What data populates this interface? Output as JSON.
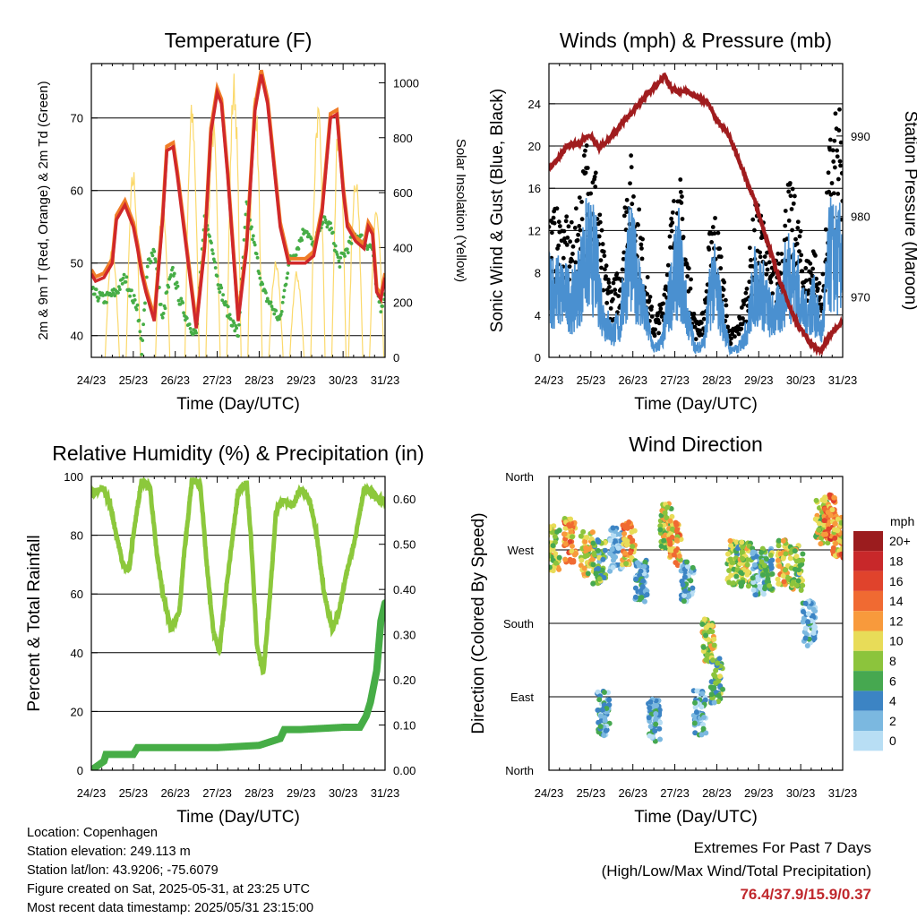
{
  "time_ticks": [
    "24/23",
    "25/23",
    "26/23",
    "27/23",
    "28/23",
    "29/23",
    "30/23",
    "31/23"
  ],
  "xlabel": "Time (Day/UTC)",
  "colors": {
    "temp_red": "#d0282a",
    "temp_orange": "#f07d28",
    "dewpoint_green": "#46ad46",
    "solar_yellow": "#fbd96b",
    "wind_blue": "#4a90d0",
    "gust_black": "#000000",
    "pressure_maroon": "#a01c1e",
    "rh_lightgreen": "#8cc83c",
    "precip_green": "#46ad46"
  },
  "chart_data": [
    {
      "name": "temperature",
      "type": "line",
      "title": "Temperature (F)",
      "ylabel": "2m & 9m T (Red, Orange) & 2m Td (Green)",
      "ylabel_right": "Solar Insolation (Yellow)",
      "ylim": [
        37,
        77.5
      ],
      "yticks": [
        40,
        50,
        60,
        70
      ],
      "ylim_right": [
        0,
        1070
      ],
      "yticks_right": [
        0,
        200,
        400,
        600,
        800,
        1000
      ],
      "xlim_days": [
        0,
        7
      ],
      "series": [
        {
          "color_key": "temp_red",
          "x": [
            0,
            0.1,
            0.3,
            0.5,
            0.6,
            0.8,
            1.0,
            1.1,
            1.2,
            1.3,
            1.5,
            1.7,
            1.8,
            1.95,
            2.05,
            2.2,
            2.5,
            2.7,
            2.85,
            3.0,
            3.1,
            3.25,
            3.5,
            3.7,
            3.9,
            4.05,
            4.2,
            4.5,
            4.7,
            4.9,
            5.1,
            5.3,
            5.5,
            5.7,
            5.85,
            6.0,
            6.1,
            6.3,
            6.5,
            6.6,
            6.7,
            6.8,
            6.9,
            7.0
          ],
          "y": [
            48.5,
            47.5,
            48,
            50,
            56,
            58,
            55,
            52,
            48.5,
            46,
            42,
            56,
            65.5,
            66,
            62,
            55,
            41,
            52,
            68,
            73.5,
            72,
            62,
            42,
            52,
            71,
            76,
            72,
            55,
            50,
            50,
            50,
            51,
            57,
            70,
            70.5,
            60,
            55,
            53,
            52,
            55,
            54,
            46,
            45,
            48
          ]
        },
        {
          "color_key": "dewpoint_green",
          "x": [
            0,
            0.3,
            0.6,
            0.8,
            1.0,
            1.1,
            1.2,
            1.35,
            1.5,
            1.7,
            1.8,
            1.95,
            2.1,
            2.3,
            2.5,
            2.7,
            2.9,
            3.0,
            3.2,
            3.5,
            3.7,
            3.9,
            4.1,
            4.3,
            4.5,
            4.7,
            4.9,
            5.1,
            5.3,
            5.5,
            5.7,
            5.9,
            6.1,
            6.3,
            6.5,
            6.7,
            6.8,
            6.9,
            7.0
          ],
          "y": [
            46,
            45,
            46,
            48,
            45,
            44,
            38,
            50,
            52,
            42,
            46,
            49,
            45,
            42,
            40,
            56,
            52,
            48,
            44,
            40,
            58,
            52,
            46,
            44,
            42,
            50,
            52,
            55,
            52,
            56,
            55,
            50,
            52,
            54,
            53,
            52,
            46,
            44,
            46
          ]
        },
        {
          "color_key": "solar_yellow",
          "axis": "right",
          "peaks_x": [
            0.5,
            1.0,
            1.7,
            2.4,
            2.9,
            3.4,
            3.9,
            4.4,
            4.9,
            5.4,
            5.9,
            6.3,
            6.8
          ],
          "peaks_y": [
            420,
            700,
            600,
            940,
            880,
            1050,
            1000,
            360,
            320,
            940,
            900,
            700,
            550
          ]
        }
      ]
    },
    {
      "name": "winds-pressure",
      "type": "line",
      "title": "Winds (mph) & Pressure (mb)",
      "ylabel": "Sonic Wind & Gust (Blue, Black)",
      "ylabel_right": "Station Pressure (Maroon)",
      "ylim": [
        0,
        27.8
      ],
      "yticks": [
        0,
        4,
        8,
        12,
        16,
        20,
        24
      ],
      "ylim_right": [
        962.5,
        999
      ],
      "yticks_right": [
        970,
        980,
        990
      ],
      "xlim_days": [
        0,
        7
      ],
      "pressure_x": [
        0,
        0.2,
        0.4,
        0.5,
        0.7,
        0.9,
        1.0,
        1.2,
        1.5,
        1.8,
        2.0,
        2.3,
        2.6,
        2.75,
        2.9,
        3.1,
        3.3,
        3.5,
        3.8,
        4.0,
        4.3,
        4.6,
        4.9,
        5.2,
        5.5,
        5.8,
        6.0,
        6.2,
        6.4,
        6.5,
        6.6,
        6.8,
        7.0
      ],
      "pressure_y": [
        986,
        987,
        988.5,
        989,
        989,
        990,
        990,
        988.5,
        990,
        992,
        993,
        995,
        996.5,
        997.5,
        996,
        995.5,
        995.5,
        995,
        994,
        992,
        990,
        986,
        982,
        977,
        972,
        968,
        966,
        964.5,
        963.5,
        963.5,
        964.5,
        966,
        967
      ],
      "wind_envelope_x": [
        0,
        0.3,
        0.6,
        0.9,
        1.1,
        1.3,
        1.5,
        1.7,
        1.9,
        2.1,
        2.3,
        2.5,
        2.7,
        2.9,
        3.1,
        3.3,
        3.5,
        3.7,
        3.9,
        4.1,
        4.3,
        4.5,
        4.7,
        4.9,
        5.1,
        5.3,
        5.5,
        5.7,
        5.9,
        6.1,
        6.3,
        6.5,
        6.7,
        6.9,
        7.0
      ],
      "wind_envelope_y": [
        9,
        8,
        7,
        13,
        12,
        5,
        3,
        4,
        13,
        10,
        5,
        1,
        2,
        8,
        12,
        5,
        1,
        2,
        10,
        6,
        1,
        1,
        3,
        9,
        8,
        5,
        6,
        11,
        9,
        5,
        7,
        3,
        13,
        12,
        13
      ],
      "gust_envelope_y": [
        13,
        12,
        11,
        19,
        17,
        9,
        6,
        8,
        18,
        14,
        8,
        3,
        5,
        12,
        16,
        9,
        3,
        4,
        14,
        9,
        2,
        3,
        6,
        13,
        12,
        8,
        9,
        15,
        13,
        8,
        10,
        5,
        19,
        21,
        19
      ]
    },
    {
      "name": "rh-precip",
      "type": "line",
      "title": "Relative Humidity (%) & Precipitation (in)",
      "ylabel": "Percent & Total Rainfall",
      "ylim": [
        0,
        100
      ],
      "yticks": [
        0,
        20,
        40,
        60,
        80,
        100
      ],
      "ylim_right": [
        0,
        0.65
      ],
      "yticks_right": [
        "0.00",
        "0.10",
        "0.20",
        "0.30",
        "0.40",
        "0.50",
        "0.60"
      ],
      "xlim_days": [
        0,
        7
      ],
      "rh_x": [
        0,
        0.1,
        0.3,
        0.45,
        0.6,
        0.75,
        0.9,
        1.0,
        1.2,
        1.4,
        1.55,
        1.7,
        1.9,
        2.1,
        2.2,
        2.4,
        2.6,
        2.75,
        2.9,
        3.05,
        3.2,
        3.5,
        3.7,
        3.8,
        3.95,
        4.1,
        4.25,
        4.4,
        4.6,
        4.8,
        5.0,
        5.2,
        5.35,
        5.55,
        5.75,
        5.9,
        6.1,
        6.3,
        6.5,
        6.7,
        6.9,
        7.0
      ],
      "rh_y": [
        93,
        95,
        96,
        90,
        80,
        70,
        68,
        80,
        99,
        96,
        75,
        60,
        48,
        54,
        72,
        99,
        97,
        70,
        48,
        40,
        60,
        95,
        98,
        80,
        42,
        33,
        58,
        88,
        92,
        90,
        96,
        92,
        82,
        60,
        48,
        54,
        68,
        80,
        96,
        94,
        92,
        92
      ],
      "precip_x": [
        0,
        0.15,
        0.3,
        0.35,
        1.0,
        1.1,
        2.0,
        3.0,
        4.0,
        4.5,
        4.6,
        5.0,
        6.0,
        6.4,
        6.55,
        6.65,
        6.8,
        6.9,
        7.0
      ],
      "precip_y": [
        0.0,
        0.01,
        0.02,
        0.035,
        0.035,
        0.05,
        0.05,
        0.05,
        0.055,
        0.07,
        0.09,
        0.09,
        0.095,
        0.095,
        0.12,
        0.15,
        0.22,
        0.33,
        0.37
      ]
    },
    {
      "name": "wind-direction",
      "type": "scatter",
      "title": "Wind Direction",
      "ylabel": "Direction (Colored By Speed)",
      "yticks": [
        "North",
        "East",
        "South",
        "West",
        "North"
      ],
      "yvals": [
        0,
        90,
        180,
        270,
        360
      ],
      "xlim_days": [
        0,
        7
      ],
      "legend_title": "mph",
      "legend_labels": [
        "20+",
        "18",
        "16",
        "14",
        "12",
        "10",
        "8",
        "6",
        "4",
        "2",
        "0"
      ],
      "legend_colors": [
        "#9b1c1e",
        "#c8282a",
        "#e0432c",
        "#f06a32",
        "#f89a3c",
        "#e8dc58",
        "#8cc43c",
        "#46a850",
        "#3c84c4",
        "#7bb8e0",
        "#b8def4"
      ],
      "clusters": [
        {
          "x": 0.1,
          "dir": 272,
          "spd": 9
        },
        {
          "x": 0.5,
          "dir": 282,
          "spd": 12
        },
        {
          "x": 0.9,
          "dir": 265,
          "spd": 10
        },
        {
          "x": 1.2,
          "dir": 255,
          "spd": 6
        },
        {
          "x": 1.3,
          "dir": 70,
          "spd": 3
        },
        {
          "x": 1.6,
          "dir": 270,
          "spd": 2
        },
        {
          "x": 1.9,
          "dir": 278,
          "spd": 12
        },
        {
          "x": 2.2,
          "dir": 230,
          "spd": 3
        },
        {
          "x": 2.5,
          "dir": 60,
          "spd": 3
        },
        {
          "x": 2.8,
          "dir": 300,
          "spd": 9
        },
        {
          "x": 3.0,
          "dir": 278,
          "spd": 12
        },
        {
          "x": 3.3,
          "dir": 230,
          "spd": 3
        },
        {
          "x": 3.6,
          "dir": 70,
          "spd": 3
        },
        {
          "x": 3.8,
          "dir": 160,
          "spd": 9
        },
        {
          "x": 4.0,
          "dir": 110,
          "spd": 6
        },
        {
          "x": 4.4,
          "dir": 255,
          "spd": 8
        },
        {
          "x": 4.7,
          "dir": 252,
          "spd": 9
        },
        {
          "x": 5.0,
          "dir": 240,
          "spd": 3
        },
        {
          "x": 5.2,
          "dir": 248,
          "spd": 6
        },
        {
          "x": 5.6,
          "dir": 255,
          "spd": 10
        },
        {
          "x": 5.9,
          "dir": 248,
          "spd": 8
        },
        {
          "x": 6.2,
          "dir": 180,
          "spd": 2
        },
        {
          "x": 6.5,
          "dir": 305,
          "spd": 9
        },
        {
          "x": 6.7,
          "dir": 310,
          "spd": 14
        },
        {
          "x": 6.9,
          "dir": 285,
          "spd": 12
        }
      ]
    }
  ],
  "info": {
    "location": "Location: Copenhagen",
    "elevation": "Station elevation: 249.113 m",
    "latlon": "Station lat/lon: 43.9206; -75.6079",
    "created": "Figure created on Sat, 2025-05-31, at 23:25 UTC",
    "recent": "Most recent data timestamp: 2025/05/31 23:15:00"
  },
  "extremes": {
    "title": "Extremes For Past 7 Days",
    "subtitle": "(High/Low/Max Wind/Total Precipitation)",
    "values": "76.4/37.9/15.9/0.37"
  }
}
